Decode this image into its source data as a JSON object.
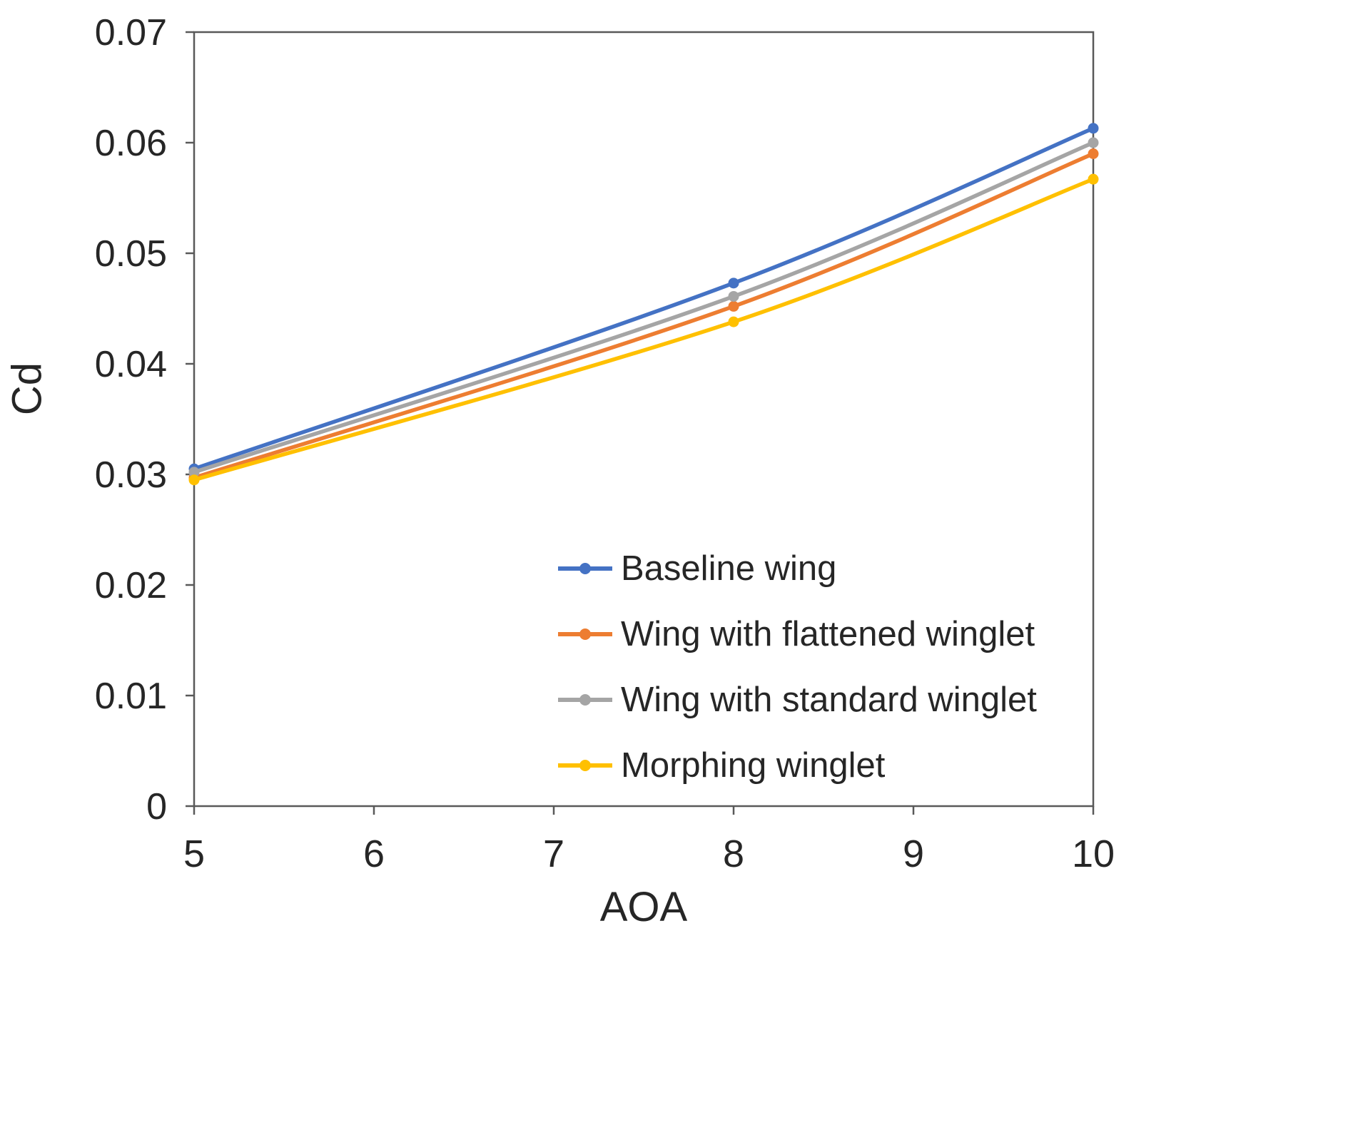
{
  "figure": {
    "background": "#ffffff",
    "frame_color": "#595959",
    "text_color": "#262626"
  },
  "chart_data": {
    "type": "line",
    "title": "",
    "xlabel": "AOA",
    "ylabel": "Cd",
    "xlim": [
      5,
      10
    ],
    "ylim": [
      0,
      0.07
    ],
    "grid": false,
    "legend_position": "inside lower right",
    "x_ticks": [
      5,
      6,
      7,
      8,
      9,
      10
    ],
    "y_ticks": [
      0,
      0.01,
      0.02,
      0.03,
      0.04,
      0.05,
      0.06,
      0.07
    ],
    "y_tick_labels": [
      "0",
      "0.01",
      "0.02",
      "0.03",
      "0.04",
      "0.05",
      "0.06",
      "0.07"
    ],
    "x": [
      5,
      8,
      10
    ],
    "series": [
      {
        "name": "Baseline wing",
        "color": "#4472C4",
        "values": [
          0.0305,
          0.0473,
          0.0613
        ]
      },
      {
        "name": "Wing with flattened winglet",
        "color": "#ED7D31",
        "values": [
          0.0297,
          0.0452,
          0.059
        ]
      },
      {
        "name": "Wing with standard winglet",
        "color": "#A5A5A5",
        "values": [
          0.0302,
          0.0461,
          0.06
        ]
      },
      {
        "name": "Morphing winglet",
        "color": "#FFC000",
        "values": [
          0.0295,
          0.0438,
          0.0567
        ]
      }
    ]
  }
}
